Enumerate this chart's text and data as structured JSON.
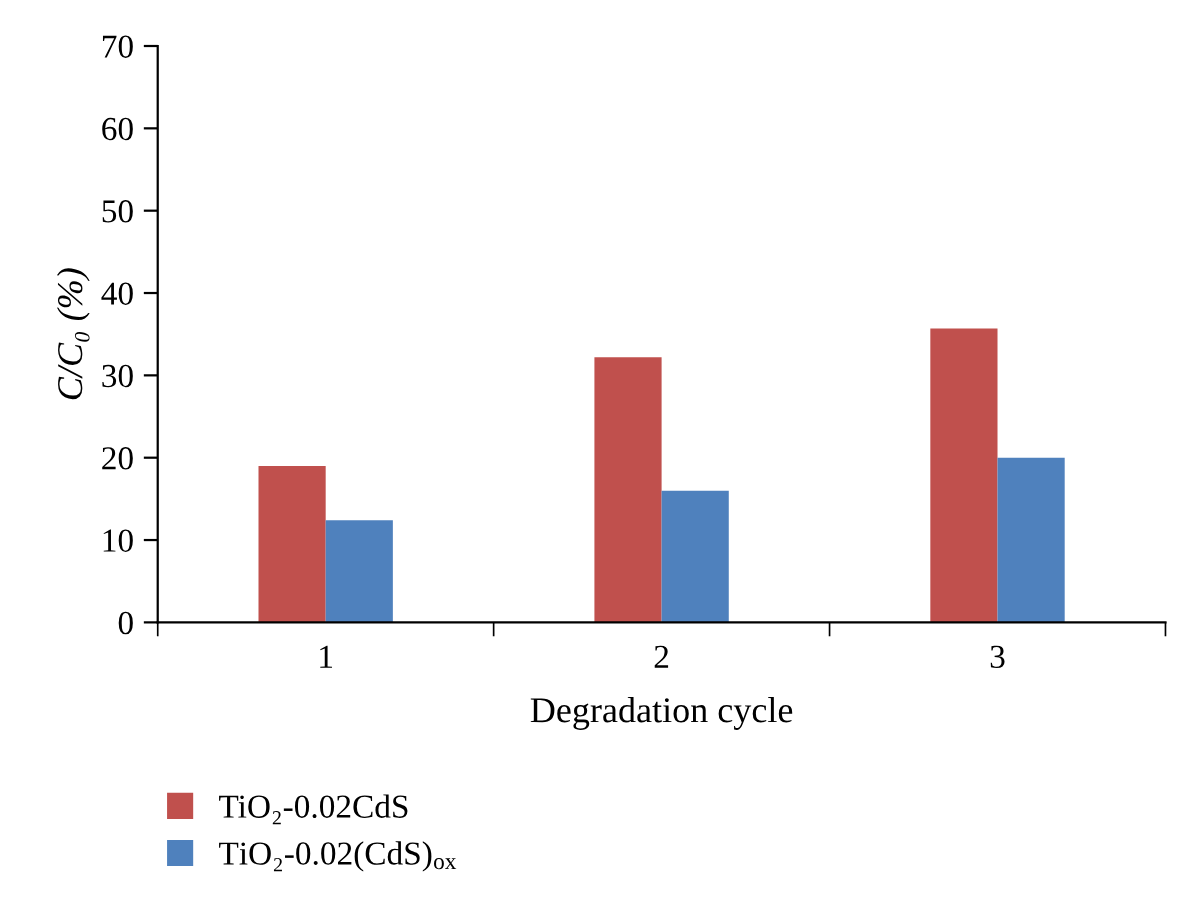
{
  "chart_data": {
    "type": "bar",
    "xlabel": "Degradation cycle",
    "ylabel": "C/C₀ (%)",
    "categories": [
      "1",
      "2",
      "3"
    ],
    "series": [
      {
        "name": "TiO₂-0.02CdS",
        "color": "#c0504d",
        "values": [
          19.0,
          32.2,
          35.7
        ]
      },
      {
        "name": "TiO₂-0.02(CdS)$_{ox}$",
        "color": "#4f81bd",
        "values": [
          12.4,
          16.0,
          20.0
        ]
      }
    ],
    "ylim": [
      0,
      70
    ],
    "yticks": [
      0,
      10,
      20,
      30,
      40,
      50,
      60,
      70
    ],
    "grid": false,
    "legend": "bottom"
  }
}
